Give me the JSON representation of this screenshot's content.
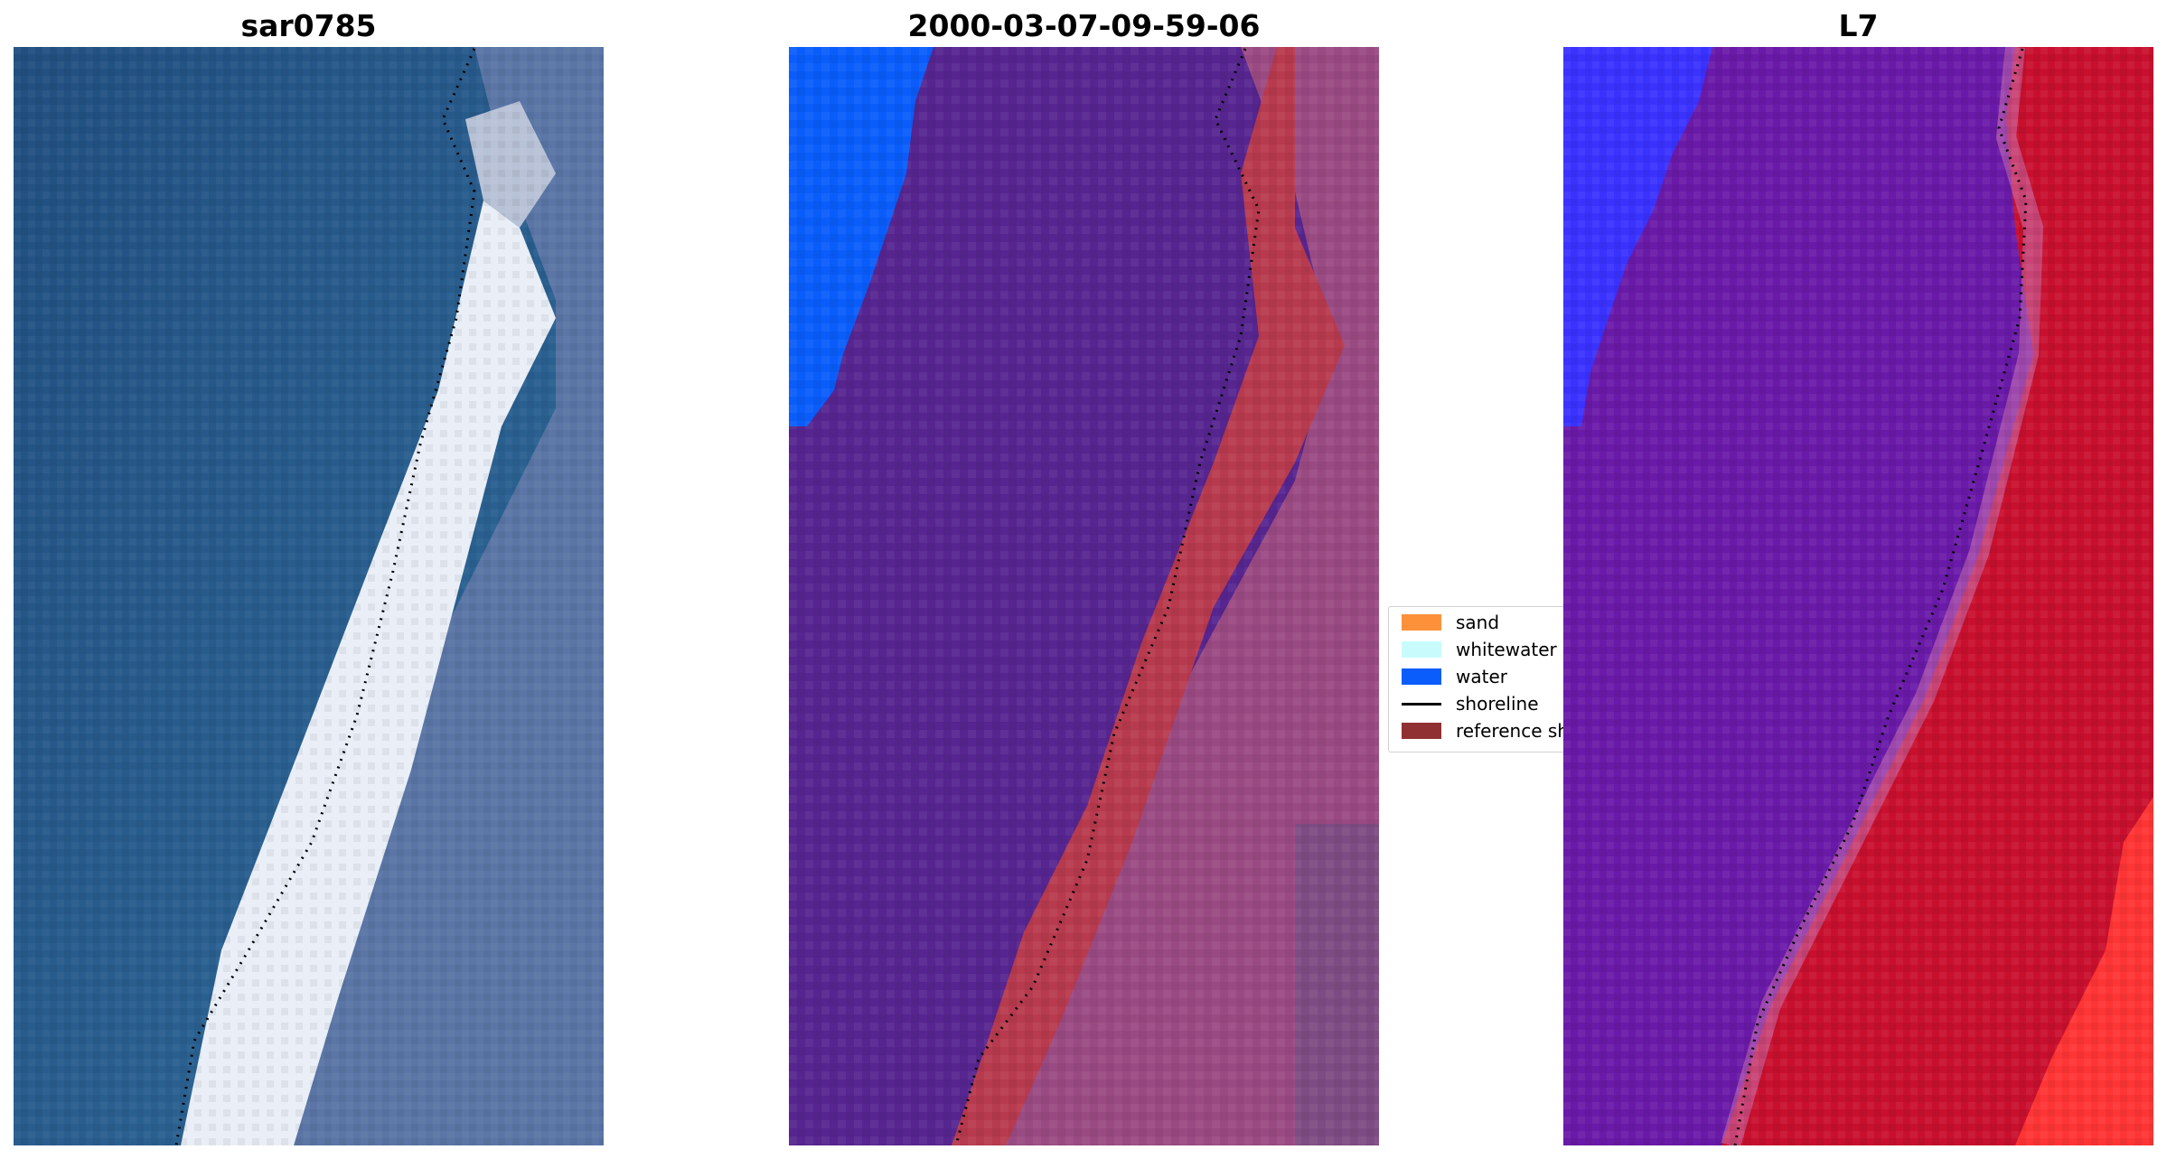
{
  "panels": [
    {
      "title": "sar0785"
    },
    {
      "title": "2000-03-07-09-59-06"
    },
    {
      "title": "L7"
    }
  ],
  "legend": {
    "items": [
      {
        "label": "sand",
        "color": "#fd913a"
      },
      {
        "label": "whitewater",
        "color": "#c8fcfc"
      },
      {
        "label": "water",
        "color": "#0a5dfb"
      },
      {
        "label": "shoreline",
        "color": "#000000",
        "kind": "line"
      },
      {
        "label": "reference shoreline buffer",
        "color": "#903032"
      }
    ]
  },
  "colors": {
    "rgb_sea": "#2a5e8e",
    "rgb_surf": "#e8eef6",
    "rgb_land": "#5a76a6",
    "class_other": "#56258f",
    "class_sand_overlay": "#b73a4e",
    "class_land": "#9a4a82",
    "class_water": "#0a5dfb",
    "index_low": "#3a2aff",
    "index_mid": "#6a1aa8",
    "index_high": "#c8102e",
    "index_max": "#ff3a3a"
  }
}
